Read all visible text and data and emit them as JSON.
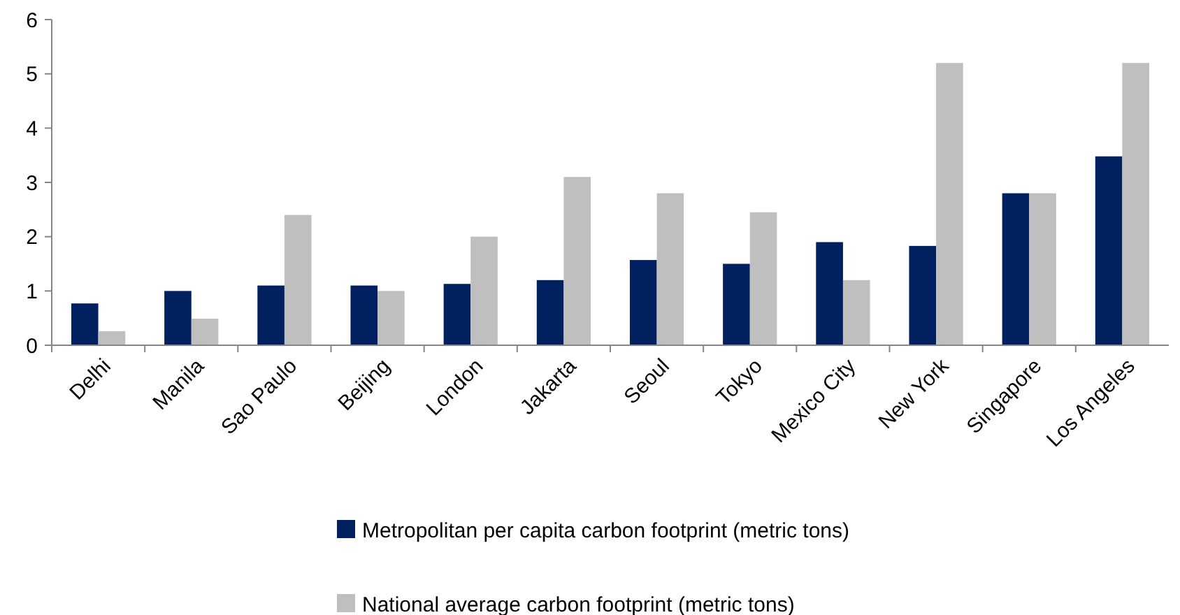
{
  "chart_data": {
    "type": "bar",
    "categories": [
      "Delhi",
      "Manila",
      "Sao Paulo",
      "Beijing",
      "London",
      "Jakarta",
      "Seoul",
      "Tokyo",
      "Mexico City",
      "New York",
      "Singapore",
      "Los Angeles"
    ],
    "series": [
      {
        "name": "Metropolitan per capita carbon footprint (metric tons)",
        "color": "#002060",
        "values": [
          0.77,
          1.0,
          1.1,
          1.1,
          1.13,
          1.2,
          1.57,
          1.5,
          1.9,
          1.83,
          2.8,
          3.48
        ]
      },
      {
        "name": "National average carbon footprint (metric tons)",
        "color": "#bfbfbf",
        "values": [
          0.26,
          0.49,
          2.4,
          1.0,
          2.0,
          3.1,
          2.8,
          2.45,
          1.2,
          5.2,
          2.8,
          5.2
        ]
      }
    ],
    "ylim": [
      0,
      6
    ],
    "yticks": [
      0,
      1,
      2,
      3,
      4,
      5,
      6
    ],
    "grid": false,
    "legend": "bottom"
  }
}
